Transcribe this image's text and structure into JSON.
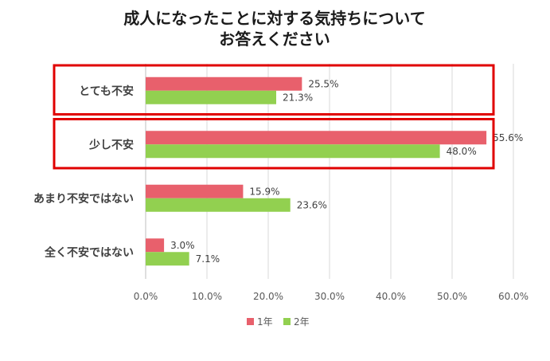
{
  "chart_data": {
    "type": "bar",
    "orientation": "horizontal",
    "title_lines": [
      "成人になったことに対する気持ちについて",
      "お答えください"
    ],
    "categories": [
      "とても不安",
      "少し不安",
      "あまり不安ではない",
      "全く不安ではない"
    ],
    "series": [
      {
        "name": "1年",
        "color": "#e8606c",
        "values": [
          25.5,
          55.6,
          15.9,
          3.0
        ],
        "labels": [
          "25.5%",
          "55.6%",
          "15.9%",
          "3.0%"
        ]
      },
      {
        "name": "2年",
        "color": "#92d050",
        "values": [
          21.3,
          48.0,
          23.6,
          7.1
        ],
        "labels": [
          "21.3%",
          "48.0%",
          "23.6%",
          "7.1%"
        ]
      }
    ],
    "xlim": [
      0,
      60
    ],
    "x_ticks": [
      0,
      10,
      20,
      30,
      40,
      50,
      60
    ],
    "x_tick_labels": [
      "0.0%",
      "10.0%",
      "20.0%",
      "30.0%",
      "40.0%",
      "50.0%",
      "60.0%"
    ],
    "grid": true,
    "legend_position": "bottom",
    "highlighted_categories": [
      "とても不安",
      "少し不安"
    ],
    "highlight_color": "#e00000",
    "axis_color": "#bfbfbf",
    "grid_color": "#d9d9d9"
  }
}
